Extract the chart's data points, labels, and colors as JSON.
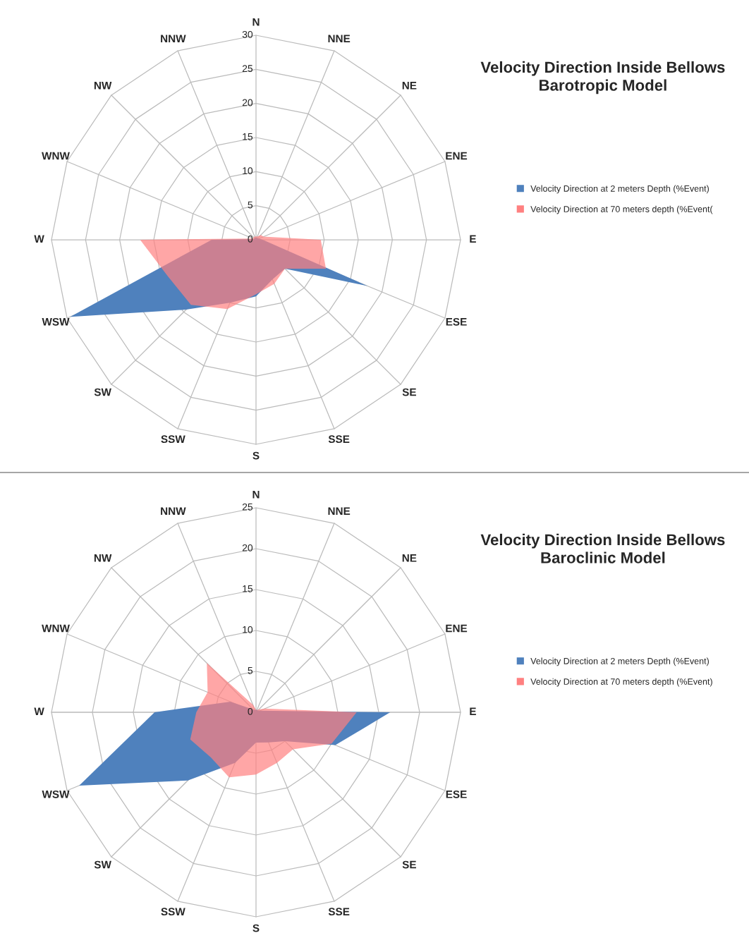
{
  "chart_data": [
    {
      "type": "radar",
      "title": "Velocity Direction Inside Bellows\nBarotropic Model",
      "categories": [
        "N",
        "NNE",
        "NE",
        "ENE",
        "E",
        "ESE",
        "SE",
        "SSE",
        "S",
        "SSW",
        "SW",
        "WSW",
        "W",
        "WNW",
        "NW",
        "NNW"
      ],
      "ylim": [
        0,
        30
      ],
      "yticks": [
        0,
        5,
        10,
        15,
        20,
        25,
        30
      ],
      "grid": true,
      "legend": "right",
      "series": [
        {
          "name": "Velocity Direction at 2 meters Depth (%Event)",
          "color": "#4f81bd",
          "values": [
            0.3,
            0.3,
            0.3,
            0.5,
            1,
            17.7,
            6,
            6.3,
            8.3,
            10,
            14.5,
            29.5,
            6.5,
            0.3,
            0.3,
            0.3
          ]
        },
        {
          "name": "Velocity Direction at 70 meters depth (%Event(",
          "color": "#ff8080",
          "values": [
            0.5,
            0.5,
            1,
            1.2,
            9.5,
            11.1,
            6,
            7,
            8,
            11,
            13.5,
            14,
            17,
            0.5,
            0.5,
            0.5
          ]
        }
      ]
    },
    {
      "type": "radar",
      "title": "Velocity Direction Inside Bellows\nBaroclinic Model",
      "categories": [
        "N",
        "NNE",
        "NE",
        "ENE",
        "E",
        "ESE",
        "SE",
        "SSE",
        "S",
        "SSW",
        "SW",
        "WSW",
        "W",
        "WNW",
        "NW",
        "NNW"
      ],
      "ylim": [
        0,
        25
      ],
      "yticks": [
        0,
        5,
        10,
        15,
        20,
        25
      ],
      "grid": true,
      "legend": "right",
      "series": [
        {
          "name": "Velocity Direction at 2 meters Depth (%Event)",
          "color": "#4f81bd",
          "values": [
            0.3,
            0.3,
            0.3,
            0.5,
            16.4,
            10.5,
            5,
            4,
            3.7,
            6.7,
            11.8,
            23.4,
            12.4,
            3.4,
            0.5,
            0.3
          ]
        },
        {
          "name": "Velocity Direction at 70 meters depth (%Event)",
          "color": "#ff8080",
          "values": [
            0.3,
            0.3,
            0.5,
            1.2,
            12.3,
            10,
            6.4,
            6.7,
            7.6,
            8.6,
            7.8,
            8.7,
            7.3,
            6.4,
            8.5,
            1
          ]
        }
      ]
    }
  ]
}
